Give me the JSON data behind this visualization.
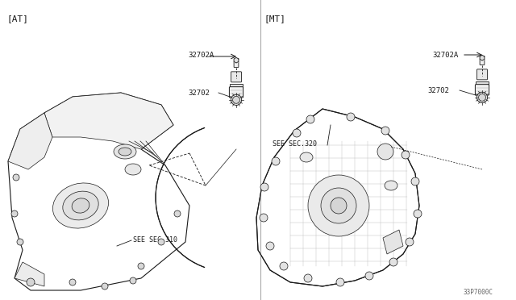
{
  "bg_color": "#ffffff",
  "line_color": "#1a1a1a",
  "text_color": "#1a1a1a",
  "fig_width": 6.4,
  "fig_height": 3.72,
  "dpi": 100,
  "title_left": "[AT]",
  "title_right": "[MT]",
  "part_label_1": "32702A",
  "part_label_2": "32702",
  "part_label_3": "32702A",
  "part_label_4": "32702",
  "ref_label_at": "SEE SEC.310",
  "ref_label_mt": "SEE SEC.320",
  "footer": "33P7000C",
  "gray_line": "#888888",
  "gray_fill": "#e8e8e8",
  "gray_mid": "#cccccc"
}
